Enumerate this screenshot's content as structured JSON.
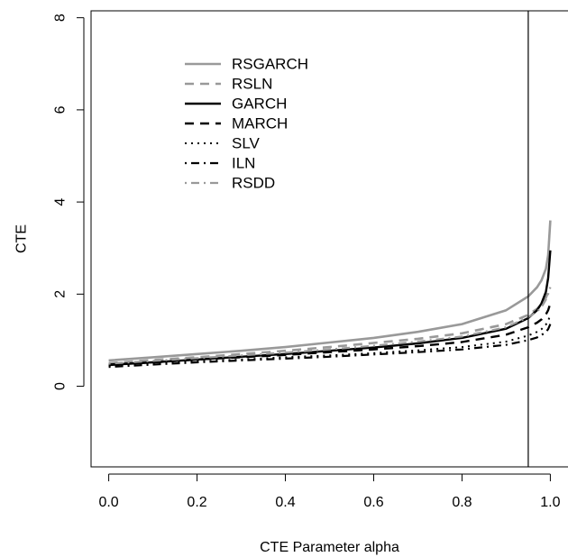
{
  "chart_data": {
    "type": "line",
    "title": "",
    "xlabel": "CTE Parameter alpha",
    "ylabel": "CTE",
    "xlim": [
      -0.04,
      1.04
    ],
    "ylim": [
      -1.75,
      8.15
    ],
    "x_ticks": [
      0.0,
      0.2,
      0.4,
      0.6,
      0.8,
      1.0
    ],
    "x_tick_labels": [
      "0.0",
      "0.2",
      "0.4",
      "0.6",
      "0.8",
      "1.0"
    ],
    "y_ticks": [
      0,
      2,
      4,
      6,
      8
    ],
    "y_tick_labels": [
      "0",
      "2",
      "4",
      "6",
      "8"
    ],
    "reference_line_x": 0.95,
    "grid": false,
    "legend_position": "top-left",
    "x": [
      0.0,
      0.1,
      0.2,
      0.3,
      0.4,
      0.5,
      0.6,
      0.7,
      0.8,
      0.9,
      0.95,
      0.97,
      0.98,
      0.99,
      0.995,
      1.0
    ],
    "series": [
      {
        "name": "RSGARCH",
        "color": "#999999",
        "dash": "solid",
        "width": 2.6,
        "values": [
          0.56,
          0.63,
          0.7,
          0.77,
          0.85,
          0.95,
          1.05,
          1.18,
          1.35,
          1.65,
          1.95,
          2.15,
          2.3,
          2.55,
          2.85,
          3.6
        ]
      },
      {
        "name": "RSLN",
        "color": "#999999",
        "dash": "dashed",
        "width": 2.6,
        "values": [
          0.5,
          0.57,
          0.63,
          0.7,
          0.77,
          0.85,
          0.94,
          1.03,
          1.15,
          1.35,
          1.55,
          1.68,
          1.78,
          1.92,
          2.05,
          2.15
        ]
      },
      {
        "name": "GARCH",
        "color": "#000000",
        "dash": "solid",
        "width": 2.4,
        "values": [
          0.46,
          0.52,
          0.58,
          0.64,
          0.7,
          0.77,
          0.84,
          0.93,
          1.05,
          1.25,
          1.48,
          1.65,
          1.8,
          2.05,
          2.35,
          2.95
        ]
      },
      {
        "name": "MARCH",
        "color": "#000000",
        "dash": "dashed",
        "width": 2.4,
        "values": [
          0.47,
          0.52,
          0.58,
          0.63,
          0.68,
          0.74,
          0.8,
          0.87,
          0.96,
          1.12,
          1.28,
          1.38,
          1.45,
          1.56,
          1.65,
          1.8
        ]
      },
      {
        "name": "SLV",
        "color": "#000000",
        "dash": "dotted",
        "width": 2.0,
        "values": [
          0.44,
          0.49,
          0.54,
          0.58,
          0.63,
          0.67,
          0.72,
          0.78,
          0.85,
          0.97,
          1.1,
          1.18,
          1.24,
          1.34,
          1.42,
          1.55
        ]
      },
      {
        "name": "ILN",
        "color": "#000000",
        "dash": "dotdash",
        "width": 2.2,
        "values": [
          0.42,
          0.47,
          0.52,
          0.56,
          0.6,
          0.64,
          0.69,
          0.74,
          0.8,
          0.9,
          1.0,
          1.06,
          1.11,
          1.18,
          1.24,
          1.35
        ]
      },
      {
        "name": "RSDD",
        "color": "#999999",
        "dash": "dotdash",
        "width": 2.2,
        "values": [
          0.49,
          0.55,
          0.61,
          0.67,
          0.73,
          0.8,
          0.88,
          0.97,
          1.08,
          1.28,
          1.5,
          1.62,
          1.72,
          1.88,
          2.0,
          2.15
        ]
      }
    ]
  }
}
